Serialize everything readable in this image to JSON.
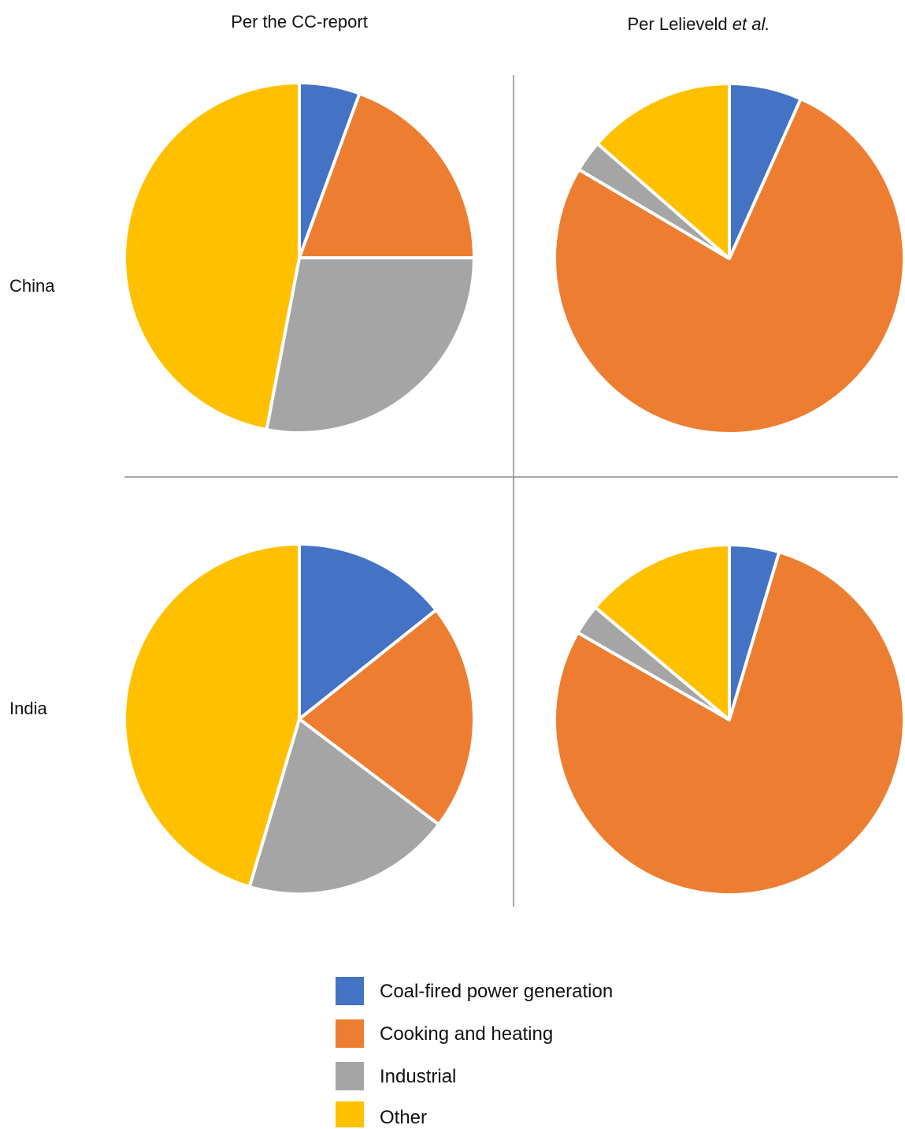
{
  "chart_data": {
    "type": "pie",
    "columns": [
      {
        "prefix": "Per the CC-report",
        "italic": ""
      },
      {
        "prefix": "Per Lelieveld ",
        "italic": "et al."
      }
    ],
    "rows": [
      "China",
      "India"
    ],
    "categories": [
      "Coal-fired power generation",
      "Cooking and heating",
      "Industrial",
      "Other"
    ],
    "colors": [
      "#4472C4",
      "#ED7D31",
      "#A5A5A5",
      "#FFC000"
    ],
    "legend_position": "bottom-center",
    "grid": false,
    "charts": [
      {
        "row": "China",
        "column": "Per the CC-report",
        "values": [
          5.6,
          19.4,
          28.0,
          47.0
        ]
      },
      {
        "row": "China",
        "column": "Per Lelieveld et al.",
        "values": [
          6.7,
          76.8,
          2.9,
          13.6
        ]
      },
      {
        "row": "India",
        "column": "Per the CC-report",
        "values": [
          14.3,
          21.0,
          19.3,
          45.4
        ]
      },
      {
        "row": "India",
        "column": "Per Lelieveld et al.",
        "values": [
          4.6,
          78.7,
          2.8,
          13.9
        ]
      }
    ]
  }
}
